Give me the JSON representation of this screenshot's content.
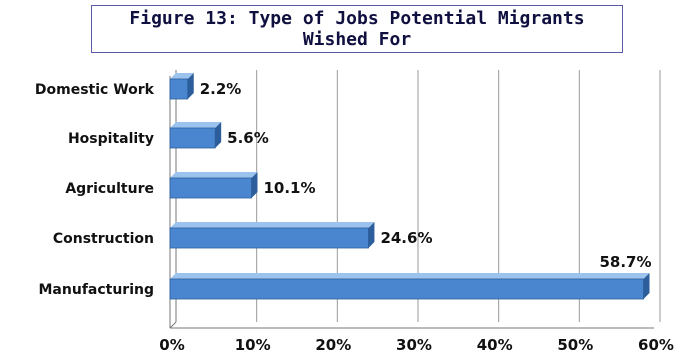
{
  "chart_data": {
    "type": "bar",
    "orientation": "horizontal",
    "title_lines": [
      "Figure 13: Type of Jobs Potential Migrants",
      "Wished For"
    ],
    "categories": [
      "Domestic Work",
      "Hospitality",
      "Agriculture",
      "Construction",
      "Manufacturing"
    ],
    "values": [
      2.2,
      5.6,
      10.1,
      24.6,
      58.7
    ],
    "data_labels": [
      "2.2%",
      "5.6%",
      "10.1%",
      "24.6%",
      "58.7%"
    ],
    "x_ticks": [
      "0%",
      "10%",
      "20%",
      "30%",
      "40%",
      "50%",
      "60%"
    ],
    "xlim": [
      0,
      60
    ],
    "grid": true,
    "legend": "none",
    "colors": {
      "bar": "#4a86cf",
      "bar_dark": "#2d5e9c",
      "bar_light": "#9cc3ee",
      "grid": "#9a9a9a",
      "title_border": "#5a5aa8"
    }
  }
}
